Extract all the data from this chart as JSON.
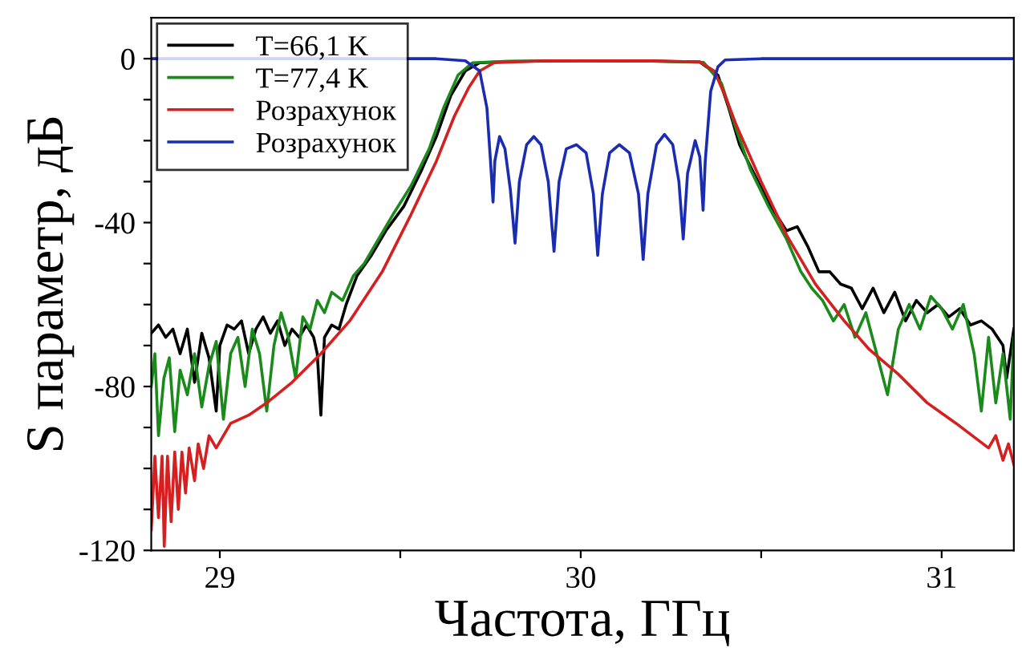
{
  "chart_data": {
    "type": "line",
    "xlabel": "Частота, ГГц",
    "ylabel": "S параметр, дБ",
    "xlim": [
      28.81,
      31.2
    ],
    "ylim": [
      -120,
      10
    ],
    "xticks": [
      29,
      {
        "value": 29.5,
        "label": null
      },
      30,
      {
        "value": 30.5,
        "label": null
      },
      31
    ],
    "yticks": [
      -120,
      {
        "value": -110,
        "label": null
      },
      {
        "value": -100,
        "label": null
      },
      {
        "value": -90,
        "label": null
      },
      -80,
      {
        "value": -70,
        "label": null
      },
      {
        "value": -60,
        "label": null
      },
      {
        "value": -50,
        "label": null
      },
      -40,
      {
        "value": -30,
        "label": null
      },
      {
        "value": -20,
        "label": null
      },
      {
        "value": -10,
        "label": null
      },
      0
    ],
    "grid": false,
    "legend": "top left",
    "series": [
      {
        "name": "T=66,1 K",
        "color": "#000000",
        "x": [
          28.81,
          28.83,
          28.85,
          28.87,
          28.89,
          28.91,
          28.93,
          28.95,
          28.97,
          28.99,
          29.0,
          29.02,
          29.04,
          29.06,
          29.08,
          29.1,
          29.12,
          29.14,
          29.16,
          29.18,
          29.2,
          29.22,
          29.24,
          29.26,
          29.27,
          29.28,
          29.29,
          29.31,
          29.33,
          29.35,
          29.38,
          29.42,
          29.46,
          29.51,
          29.56,
          29.6,
          29.64,
          29.68,
          29.72,
          29.8,
          30.0,
          30.2,
          30.33,
          30.38,
          30.41,
          30.44,
          30.48,
          30.52,
          30.57,
          30.6,
          30.63,
          30.66,
          30.69,
          30.72,
          30.75,
          30.78,
          30.81,
          30.84,
          30.87,
          30.9,
          30.93,
          30.96,
          30.99,
          31.02,
          31.05,
          31.08,
          31.11,
          31.14,
          31.17,
          31.18,
          31.2
        ],
        "values": [
          -67,
          -65,
          -68,
          -66,
          -72,
          -66,
          -79,
          -67,
          -73,
          -86,
          -70,
          -65,
          -66,
          -64,
          -72,
          -66,
          -63,
          -67,
          -64,
          -70,
          -66,
          -68,
          -65,
          -68,
          -72,
          -87,
          -68,
          -65,
          -66,
          -60,
          -53,
          -48,
          -42,
          -36,
          -27,
          -19,
          -9,
          -3,
          -1,
          -0.7,
          -0.5,
          -0.6,
          -0.8,
          -4,
          -12,
          -21,
          -28,
          -35,
          -42,
          -41,
          -46,
          -52,
          -52,
          -55,
          -56,
          -61,
          -56,
          -62,
          -57,
          -64,
          -59,
          -62,
          -60,
          -63,
          -61,
          -65,
          -64,
          -66,
          -70,
          -78,
          -66
        ]
      },
      {
        "name": "T=77,4 K",
        "color": "#1a8a1a",
        "x": [
          28.81,
          28.82,
          28.83,
          28.845,
          28.86,
          28.875,
          28.89,
          28.91,
          28.93,
          28.95,
          28.97,
          28.99,
          29.01,
          29.03,
          29.05,
          29.07,
          29.09,
          29.11,
          29.13,
          29.15,
          29.17,
          29.19,
          29.21,
          29.23,
          29.25,
          29.27,
          29.29,
          29.31,
          29.34,
          29.37,
          29.4,
          29.44,
          29.48,
          29.53,
          29.58,
          29.62,
          29.66,
          29.7,
          29.8,
          30.0,
          30.2,
          30.34,
          30.39,
          30.43,
          30.47,
          30.52,
          30.57,
          30.61,
          30.64,
          30.67,
          30.7,
          30.73,
          30.76,
          30.79,
          30.82,
          30.85,
          30.88,
          30.91,
          30.94,
          30.97,
          31.0,
          31.03,
          31.06,
          31.09,
          31.11,
          31.13,
          31.15,
          31.17,
          31.19,
          31.2
        ],
        "values": [
          -80,
          -72,
          -92,
          -78,
          -73,
          -91,
          -76,
          -82,
          -72,
          -85,
          -75,
          -69,
          -88,
          -72,
          -68,
          -80,
          -66,
          -72,
          -86,
          -70,
          -62,
          -68,
          -78,
          -63,
          -66,
          -59,
          -62,
          -57,
          -59,
          -53,
          -50,
          -44,
          -38,
          -31,
          -22,
          -12,
          -4,
          -1,
          -0.6,
          -0.5,
          -0.6,
          -0.9,
          -6,
          -17,
          -27,
          -36,
          -44,
          -52,
          -56,
          -59,
          -64,
          -60,
          -68,
          -62,
          -72,
          -82,
          -66,
          -60,
          -66,
          -58,
          -61,
          -66,
          -60,
          -72,
          -86,
          -68,
          -84,
          -72,
          -88,
          -68
        ]
      },
      {
        "name": "Розрахунок",
        "color": "#d42020",
        "x": [
          28.81,
          28.82,
          28.83,
          28.84,
          28.846,
          28.855,
          28.865,
          28.875,
          28.885,
          28.895,
          28.905,
          28.915,
          28.93,
          28.94,
          28.955,
          28.97,
          28.99,
          29.03,
          29.08,
          29.13,
          29.2,
          29.28,
          29.36,
          29.45,
          29.53,
          29.6,
          29.65,
          29.69,
          29.72,
          29.76,
          29.9,
          30.2,
          30.33,
          30.37,
          30.4,
          30.43,
          30.5,
          30.57,
          30.65,
          30.73,
          30.8,
          30.88,
          30.96,
          31.04,
          31.1,
          31.13,
          31.15,
          31.17,
          31.185,
          31.2
        ],
        "values": [
          -115,
          -97,
          -112,
          -97,
          -119,
          -97,
          -113,
          -96,
          -110,
          -96,
          -106,
          -95,
          -103,
          -94,
          -100,
          -92,
          -95,
          -89,
          -87,
          -84,
          -79,
          -72,
          -64,
          -52,
          -38,
          -25,
          -14,
          -7,
          -3,
          -1,
          -0.5,
          -0.5,
          -0.8,
          -3,
          -9,
          -16,
          -30,
          -43,
          -55,
          -64,
          -71,
          -77,
          -84,
          -89,
          -93,
          -95,
          -92,
          -98,
          -94,
          -99
        ]
      },
      {
        "name": "Розрахунок",
        "color": "#1a2db0",
        "x": [
          28.81,
          29.6,
          29.68,
          29.72,
          29.74,
          29.75,
          29.757,
          29.762,
          29.775,
          29.79,
          29.805,
          29.818,
          29.83,
          29.85,
          29.87,
          29.89,
          29.91,
          29.926,
          29.94,
          29.96,
          29.988,
          30.015,
          30.035,
          30.047,
          30.06,
          30.08,
          30.107,
          30.135,
          30.16,
          30.173,
          30.186,
          30.21,
          30.232,
          30.255,
          30.272,
          30.284,
          30.296,
          30.317,
          30.33,
          30.339,
          30.345,
          30.36,
          30.38,
          30.4,
          30.5,
          31.2
        ],
        "values": [
          0,
          0,
          -0.5,
          -3,
          -12,
          -25,
          -35,
          -25,
          -19,
          -22,
          -32,
          -45,
          -30,
          -21,
          -19,
          -21,
          -30,
          -47,
          -30,
          -22,
          -21,
          -23,
          -33,
          -48,
          -33,
          -23,
          -21,
          -23,
          -33,
          -49,
          -33,
          -21,
          -18.5,
          -21,
          -30,
          -44,
          -28,
          -20,
          -24,
          -37,
          -25,
          -8,
          -2,
          -0.3,
          0,
          0
        ]
      }
    ]
  }
}
